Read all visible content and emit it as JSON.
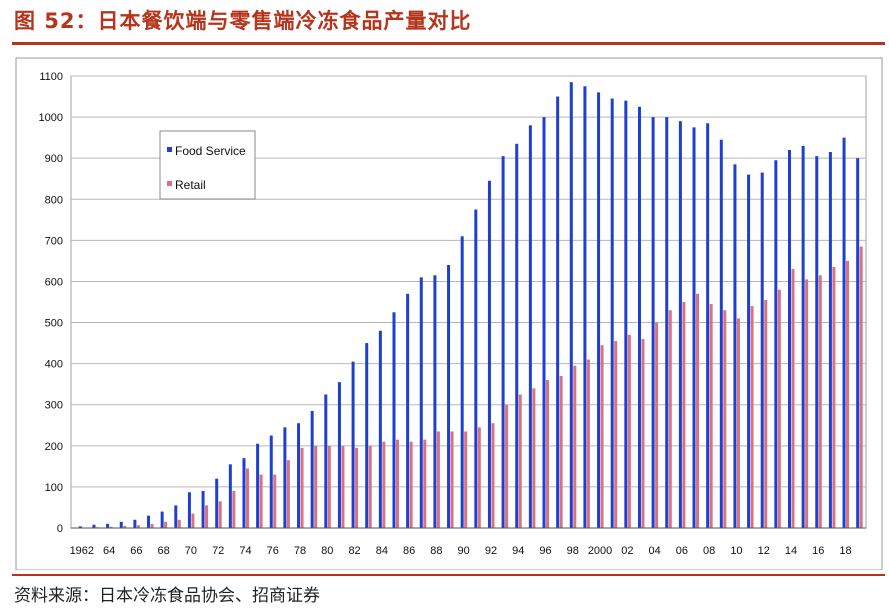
{
  "header": {
    "title": "图 52：日本餐饮端与零售端冷冻食品产量对比"
  },
  "footer": {
    "source": "资料来源：日本冷冻食品协会、招商证券"
  },
  "chart_data": {
    "type": "bar",
    "title": "",
    "xlabel": "",
    "ylabel": "",
    "ylim": [
      0,
      1100
    ],
    "yticks": [
      0,
      100,
      200,
      300,
      400,
      500,
      600,
      700,
      800,
      900,
      1000,
      1100
    ],
    "grid": true,
    "legend_position": "top-left",
    "x": [
      1962,
      1963,
      1964,
      1965,
      1966,
      1967,
      1968,
      1969,
      1970,
      1971,
      1972,
      1973,
      1974,
      1975,
      1976,
      1977,
      1978,
      1979,
      1980,
      1981,
      1982,
      1983,
      1984,
      1985,
      1986,
      1987,
      1988,
      1989,
      1990,
      1991,
      1992,
      1993,
      1994,
      1995,
      1996,
      1997,
      1998,
      1999,
      2000,
      2001,
      2002,
      2003,
      2004,
      2005,
      2006,
      2007,
      2008,
      2009,
      2010,
      2011,
      2012,
      2013,
      2014,
      2015,
      2016,
      2017,
      2018,
      2019
    ],
    "x_tick_labels": [
      {
        "x": 1962,
        "label": "1962"
      },
      {
        "x": 1964,
        "label": "64"
      },
      {
        "x": 1966,
        "label": "66"
      },
      {
        "x": 1968,
        "label": "68"
      },
      {
        "x": 1970,
        "label": "70"
      },
      {
        "x": 1972,
        "label": "72"
      },
      {
        "x": 1974,
        "label": "74"
      },
      {
        "x": 1976,
        "label": "76"
      },
      {
        "x": 1978,
        "label": "78"
      },
      {
        "x": 1980,
        "label": "80"
      },
      {
        "x": 1982,
        "label": "82"
      },
      {
        "x": 1984,
        "label": "84"
      },
      {
        "x": 1986,
        "label": "86"
      },
      {
        "x": 1988,
        "label": "88"
      },
      {
        "x": 1990,
        "label": "90"
      },
      {
        "x": 1992,
        "label": "92"
      },
      {
        "x": 1994,
        "label": "94"
      },
      {
        "x": 1996,
        "label": "96"
      },
      {
        "x": 1998,
        "label": "98"
      },
      {
        "x": 2000,
        "label": "2000"
      },
      {
        "x": 2002,
        "label": "02"
      },
      {
        "x": 2004,
        "label": "04"
      },
      {
        "x": 2006,
        "label": "06"
      },
      {
        "x": 2008,
        "label": "08"
      },
      {
        "x": 2010,
        "label": "10"
      },
      {
        "x": 2012,
        "label": "12"
      },
      {
        "x": 2014,
        "label": "14"
      },
      {
        "x": 2016,
        "label": "16"
      },
      {
        "x": 2018,
        "label": "18"
      }
    ],
    "series": [
      {
        "name": "Food Service",
        "color": "#1f3fd1",
        "values": [
          4,
          8,
          10,
          15,
          20,
          30,
          40,
          55,
          87,
          90,
          120,
          155,
          170,
          205,
          225,
          245,
          255,
          285,
          325,
          355,
          405,
          450,
          480,
          525,
          570,
          610,
          615,
          640,
          710,
          775,
          845,
          905,
          935,
          980,
          1000,
          1050,
          1085,
          1075,
          1060,
          1045,
          1040,
          1025,
          1000,
          1000,
          990,
          975,
          985,
          945,
          885,
          860,
          865,
          895,
          920,
          930,
          905,
          915,
          950,
          900
        ]
      },
      {
        "name": "Retail",
        "color": "#d9727f",
        "values": [
          1,
          2,
          3,
          5,
          7,
          10,
          15,
          20,
          35,
          55,
          65,
          90,
          145,
          130,
          130,
          165,
          195,
          200,
          200,
          200,
          195,
          200,
          210,
          215,
          210,
          215,
          235,
          235,
          235,
          245,
          255,
          300,
          325,
          340,
          360,
          370,
          395,
          410,
          445,
          455,
          470,
          460,
          500,
          530,
          550,
          570,
          545,
          530,
          510,
          540,
          555,
          580,
          630,
          605,
          615,
          635,
          650,
          685
        ]
      }
    ]
  }
}
